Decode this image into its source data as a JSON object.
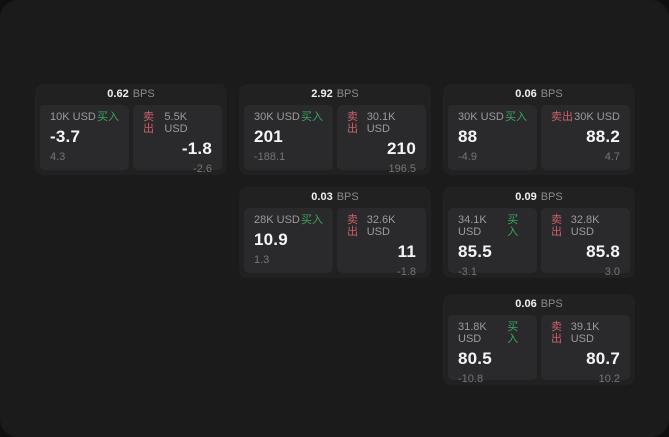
{
  "labels": {
    "bps_unit": "BPS",
    "buy": "买入",
    "sell": "卖出"
  },
  "colors": {
    "buy_green": "#3ba55d",
    "sell_red": "#cc5f6b",
    "window_bg": "#1b1b1c",
    "card_bg": "#212122",
    "panel_bg": "#2a2a2c"
  },
  "cards": [
    {
      "bps": "0.62",
      "buy": {
        "amount": "10K USD",
        "value": "-3.7",
        "sub": "4.3"
      },
      "sell": {
        "amount": "5.5K USD",
        "value": "-1.8",
        "sub": "-2.6"
      }
    },
    {
      "bps": "2.92",
      "buy": {
        "amount": "30K USD",
        "value": "201",
        "sub": "-188.1"
      },
      "sell": {
        "amount": "30.1K USD",
        "value": "210",
        "sub": "196.5"
      }
    },
    {
      "bps": "0.06",
      "buy": {
        "amount": "30K USD",
        "value": "88",
        "sub": "-4.9"
      },
      "sell": {
        "amount": "30K USD",
        "value": "88.2",
        "sub": "4.7"
      }
    },
    {
      "bps": "0.03",
      "buy": {
        "amount": "28K USD",
        "value": "10.9",
        "sub": "1.3"
      },
      "sell": {
        "amount": "32.6K USD",
        "value": "11",
        "sub": "-1.8"
      }
    },
    {
      "bps": "0.09",
      "buy": {
        "amount": "34.1K USD",
        "value": "85.5",
        "sub": "-3.1"
      },
      "sell": {
        "amount": "32.8K USD",
        "value": "85.8",
        "sub": "3.0"
      }
    },
    {
      "bps": "0.06",
      "buy": {
        "amount": "31.8K USD",
        "value": "80.5",
        "sub": "-10.8"
      },
      "sell": {
        "amount": "39.1K USD",
        "value": "80.7",
        "sub": "10.2"
      }
    }
  ]
}
